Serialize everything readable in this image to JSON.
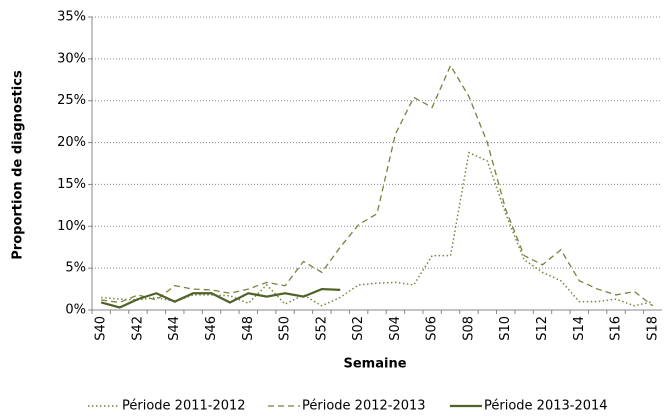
{
  "chart_data": {
    "type": "line",
    "y_label": "Proportion de diagnostics",
    "x_label": "Semaine",
    "categories": [
      "S40",
      null,
      "S42",
      null,
      "S44",
      null,
      "S46",
      null,
      "S48",
      null,
      "S50",
      null,
      "S52",
      null,
      "S02",
      null,
      "S04",
      null,
      "S06",
      null,
      "S08",
      null,
      "S10",
      null,
      "S12",
      null,
      "S14",
      null,
      "S16",
      null,
      "S18"
    ],
    "series": [
      {
        "name": "Période 2011-2012",
        "color": "#76843f",
        "style": "dotted",
        "values": [
          1.5,
          1.3,
          1.2,
          1.5,
          1.0,
          1.8,
          1.8,
          1.7,
          0.8,
          3.0,
          0.7,
          1.8,
          0.5,
          1.5,
          3.0,
          3.2,
          3.3,
          3.0,
          6.5,
          6.5,
          18.8,
          17.8,
          11.5,
          6.0,
          4.5,
          3.5,
          1.0,
          1.0,
          1.3,
          0.5,
          1.0
        ]
      },
      {
        "name": "Période 2012-2013",
        "color": "#76843f",
        "style": "dashed",
        "values": [
          1.2,
          0.9,
          1.8,
          1.2,
          2.9,
          2.5,
          2.4,
          2.0,
          2.5,
          3.3,
          2.9,
          5.8,
          4.5,
          7.5,
          10.2,
          11.5,
          21.0,
          25.4,
          24.2,
          29.2,
          25.5,
          20.0,
          12.0,
          6.5,
          5.4,
          7.2,
          3.5,
          2.5,
          1.8,
          2.2,
          0.5
        ]
      },
      {
        "name": "Période 2013-2014",
        "color": "#4f6228",
        "style": "solid",
        "values": [
          0.9,
          0.3,
          1.3,
          2.0,
          1.0,
          2.0,
          2.0,
          0.9,
          2.0,
          1.6,
          2.0,
          1.6,
          2.5,
          2.4,
          null,
          null,
          null,
          null,
          null,
          null,
          null,
          null,
          null,
          null,
          null,
          null,
          null,
          null,
          null,
          null,
          null
        ]
      }
    ],
    "ylim": [
      0,
      35
    ],
    "yticks": [
      {
        "value": 0,
        "label": "0%"
      },
      {
        "value": 5,
        "label": "5%"
      },
      {
        "value": 10,
        "label": "10%"
      },
      {
        "value": 15,
        "label": "15%"
      },
      {
        "value": 20,
        "label": "20%"
      },
      {
        "value": 25,
        "label": "25%"
      },
      {
        "value": 30,
        "label": "30%"
      },
      {
        "value": 35,
        "label": "35%"
      }
    ],
    "grid": true,
    "legend": "bottom"
  }
}
